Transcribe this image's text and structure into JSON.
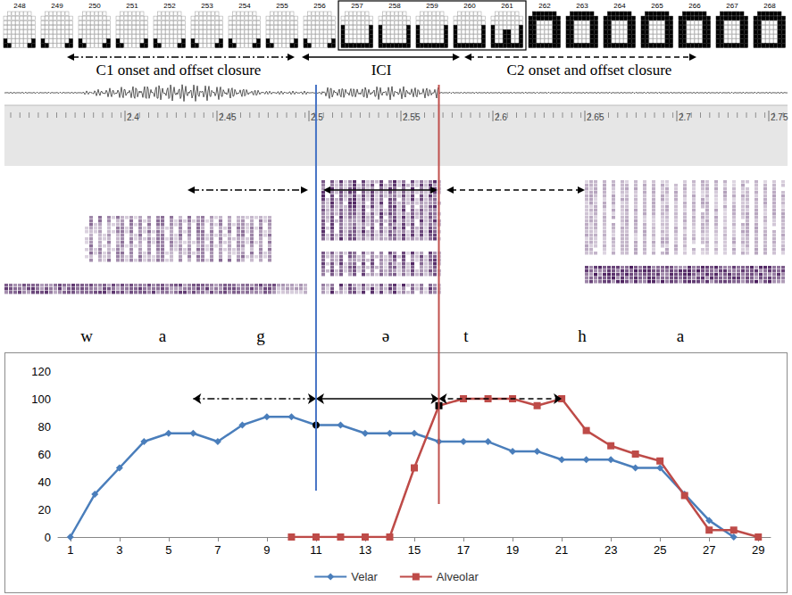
{
  "palatograms": {
    "frames": [
      248,
      249,
      250,
      251,
      252,
      253,
      254,
      255,
      256,
      257,
      258,
      259,
      260,
      261,
      262,
      263,
      264,
      265,
      266,
      267,
      268
    ],
    "boxed": [
      257,
      258,
      259,
      260,
      261
    ]
  },
  "annotations": {
    "c1": "C1 onset and offset closure",
    "ici": "ICI",
    "c2": "C2 onset and offset closure"
  },
  "waveform": {
    "time_labels": [
      "2.4",
      "2.45",
      "2.5",
      "2.55",
      "2.6",
      "2.65",
      "2.7",
      "2.75"
    ]
  },
  "segments": [
    "w",
    "a",
    "g",
    "ə",
    "t",
    "h",
    "a"
  ],
  "chart_data": {
    "type": "line",
    "x": [
      1,
      2,
      3,
      4,
      5,
      6,
      7,
      8,
      9,
      10,
      11,
      12,
      13,
      14,
      15,
      16,
      17,
      18,
      19,
      20,
      21,
      22,
      23,
      24,
      25,
      26,
      27,
      28,
      29
    ],
    "xlim": [
      0.5,
      29.5
    ],
    "xticks": [
      1,
      3,
      5,
      7,
      9,
      11,
      13,
      15,
      17,
      19,
      21,
      23,
      25,
      27,
      29
    ],
    "ylim": [
      0,
      120
    ],
    "yticks": [
      0,
      20,
      40,
      60,
      80,
      100,
      120
    ],
    "grid": false,
    "legend": "bottom",
    "series": [
      {
        "name": "Velar",
        "color": "#4a7ebb",
        "marker": "diamond",
        "highlight_x": [
          11
        ],
        "values": [
          0,
          31,
          50,
          69,
          75,
          75,
          69,
          81,
          87,
          87,
          81,
          81,
          75,
          75,
          75,
          69,
          69,
          69,
          62,
          62,
          56,
          56,
          56,
          50,
          50,
          31,
          12,
          0,
          null
        ]
      },
      {
        "name": "Alveolar",
        "color": "#be4b48",
        "marker": "square",
        "highlight_x": [
          16
        ],
        "values": [
          null,
          null,
          null,
          null,
          null,
          null,
          null,
          null,
          null,
          0,
          0,
          0,
          0,
          0,
          50,
          95,
          100,
          100,
          100,
          95,
          100,
          77,
          66,
          60,
          55,
          30,
          5,
          5,
          0
        ]
      }
    ],
    "boundaries": [
      {
        "x": 11,
        "color": "#4472c4"
      },
      {
        "x": 16,
        "color": "#c0504d"
      }
    ],
    "intervals": [
      {
        "from": 6,
        "to": 11,
        "y": 100,
        "line_style": "dashdot"
      },
      {
        "from": 11,
        "to": 16,
        "y": 100,
        "line_style": "solid"
      },
      {
        "from": 16,
        "to": 21,
        "y": 100,
        "line_style": "dashed"
      }
    ]
  }
}
